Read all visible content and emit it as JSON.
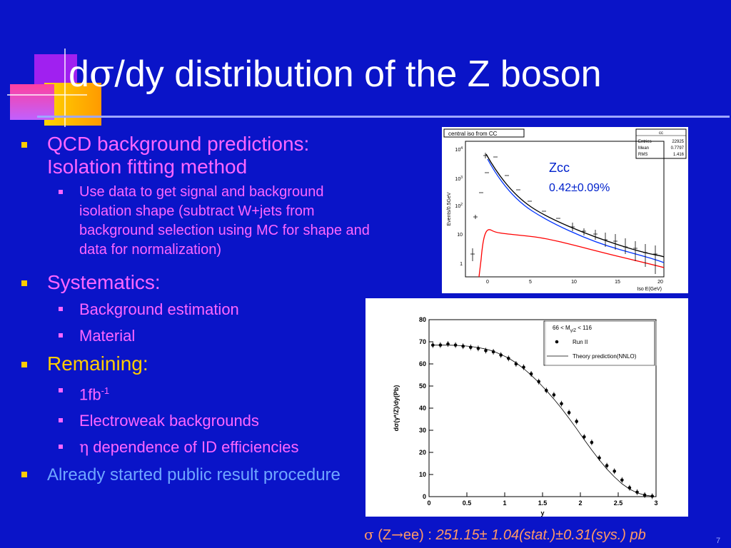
{
  "title": {
    "prefix": "d",
    "sigma": "σ",
    "rest": "/dy distribution of the Z boson"
  },
  "bullets": [
    {
      "text": "QCD background predictions: Isolation fitting method",
      "sub": [
        "Use data to get signal and background isolation shape (subtract W+jets from background selection using MC for shape and data for normalization)"
      ]
    },
    {
      "text": "Systematics:",
      "sub": [
        "Background estimation",
        "Material"
      ]
    },
    {
      "text": "Remaining:",
      "sub_1fb": "1fb",
      "sub_1fb_sup": "-1",
      "sub_ew": "Electroweak backgrounds",
      "sub_eta_sym": "η",
      "sub_eta": " dependence of ID efficiencies"
    },
    {
      "text": "Already started public result procedure"
    }
  ],
  "plot_iso": {
    "label_box": "central iso from CC",
    "stats": {
      "name": "cc",
      "rows": [
        [
          "Entries",
          "22925"
        ],
        [
          "Mean",
          "0.7797"
        ],
        [
          "RMS",
          "1.416"
        ]
      ]
    },
    "ylabel": "Events/0.5GeV",
    "xlabel": "Iso E(GeV)",
    "xticks": [
      "0",
      "5",
      "10",
      "15",
      "20"
    ],
    "ytick_base": "10",
    "ytick_exps": [
      "4",
      "3",
      "2",
      ""
    ],
    "ytick_one": "1",
    "annotation_name": "Zcc",
    "annotation_value": "0.42±0.09%"
  },
  "plot_dsdy": {
    "ylabel": "dσ(γ*/Z)/dy(Pb)",
    "xlabel": "y",
    "legend_title": "66 < M",
    "legend_sub": "γ/Z",
    "legend_title_end": " < 116",
    "legend_run": "Run II",
    "legend_theory": "Theory prediction(NNLO)",
    "xticks": [
      "0",
      "0.5",
      "1",
      "1.5",
      "2",
      "2.5",
      "3"
    ],
    "yticks": [
      "0",
      "10",
      "20",
      "30",
      "40",
      "50",
      "60",
      "70",
      "80"
    ]
  },
  "chart_data": {
    "type": "scatter",
    "x": [
      0.05,
      0.15,
      0.25,
      0.35,
      0.45,
      0.55,
      0.65,
      0.75,
      0.85,
      0.95,
      1.05,
      1.15,
      1.25,
      1.35,
      1.45,
      1.55,
      1.65,
      1.75,
      1.85,
      1.95,
      2.05,
      2.15,
      2.25,
      2.35,
      2.45,
      2.55,
      2.65,
      2.75,
      2.85,
      2.95
    ],
    "series": [
      {
        "name": "Run II",
        "values": [
          68.5,
          68.5,
          69,
          68.5,
          68,
          67.5,
          67,
          66,
          65.5,
          64,
          62.5,
          60,
          58.5,
          55.5,
          52,
          48,
          46,
          42,
          38,
          34,
          27,
          24.5,
          17.5,
          14,
          11.5,
          7.5,
          4,
          2,
          0.7,
          0.2
        ]
      },
      {
        "name": "Theory prediction(NNLO)",
        "values": [
          68.5,
          68.5,
          68.5,
          68.4,
          68.2,
          67.9,
          67.4,
          66.7,
          65.7,
          64.3,
          62.6,
          60.5,
          57.9,
          54.9,
          51.6,
          48,
          44.1,
          39.9,
          35.4,
          30.7,
          25.8,
          21.1,
          16.6,
          12.5,
          8.9,
          5.8,
          3.4,
          1.7,
          0.7,
          0.2
        ]
      }
    ],
    "xlabel": "y",
    "ylabel": "dσ(γ*/Z)/dy(Pb)",
    "xlim": [
      0,
      3
    ],
    "ylim": [
      0,
      80
    ],
    "grid": false,
    "legend": "top-right"
  },
  "footer": {
    "sigma": "σ",
    "open": " (Z",
    "arrow": "→",
    "close": "ee) : ",
    "value": "251.15± 1.04(stat.)±0.31(sys.) pb"
  },
  "page_number": "7",
  "colors": {
    "background": "#0a14c8",
    "title": "#ffffff",
    "bullet_l1": "#ff66ff",
    "bullet_dot": "#ffcc00",
    "bullet_blue": "#6fa6ff",
    "footer": "#ff9966"
  }
}
